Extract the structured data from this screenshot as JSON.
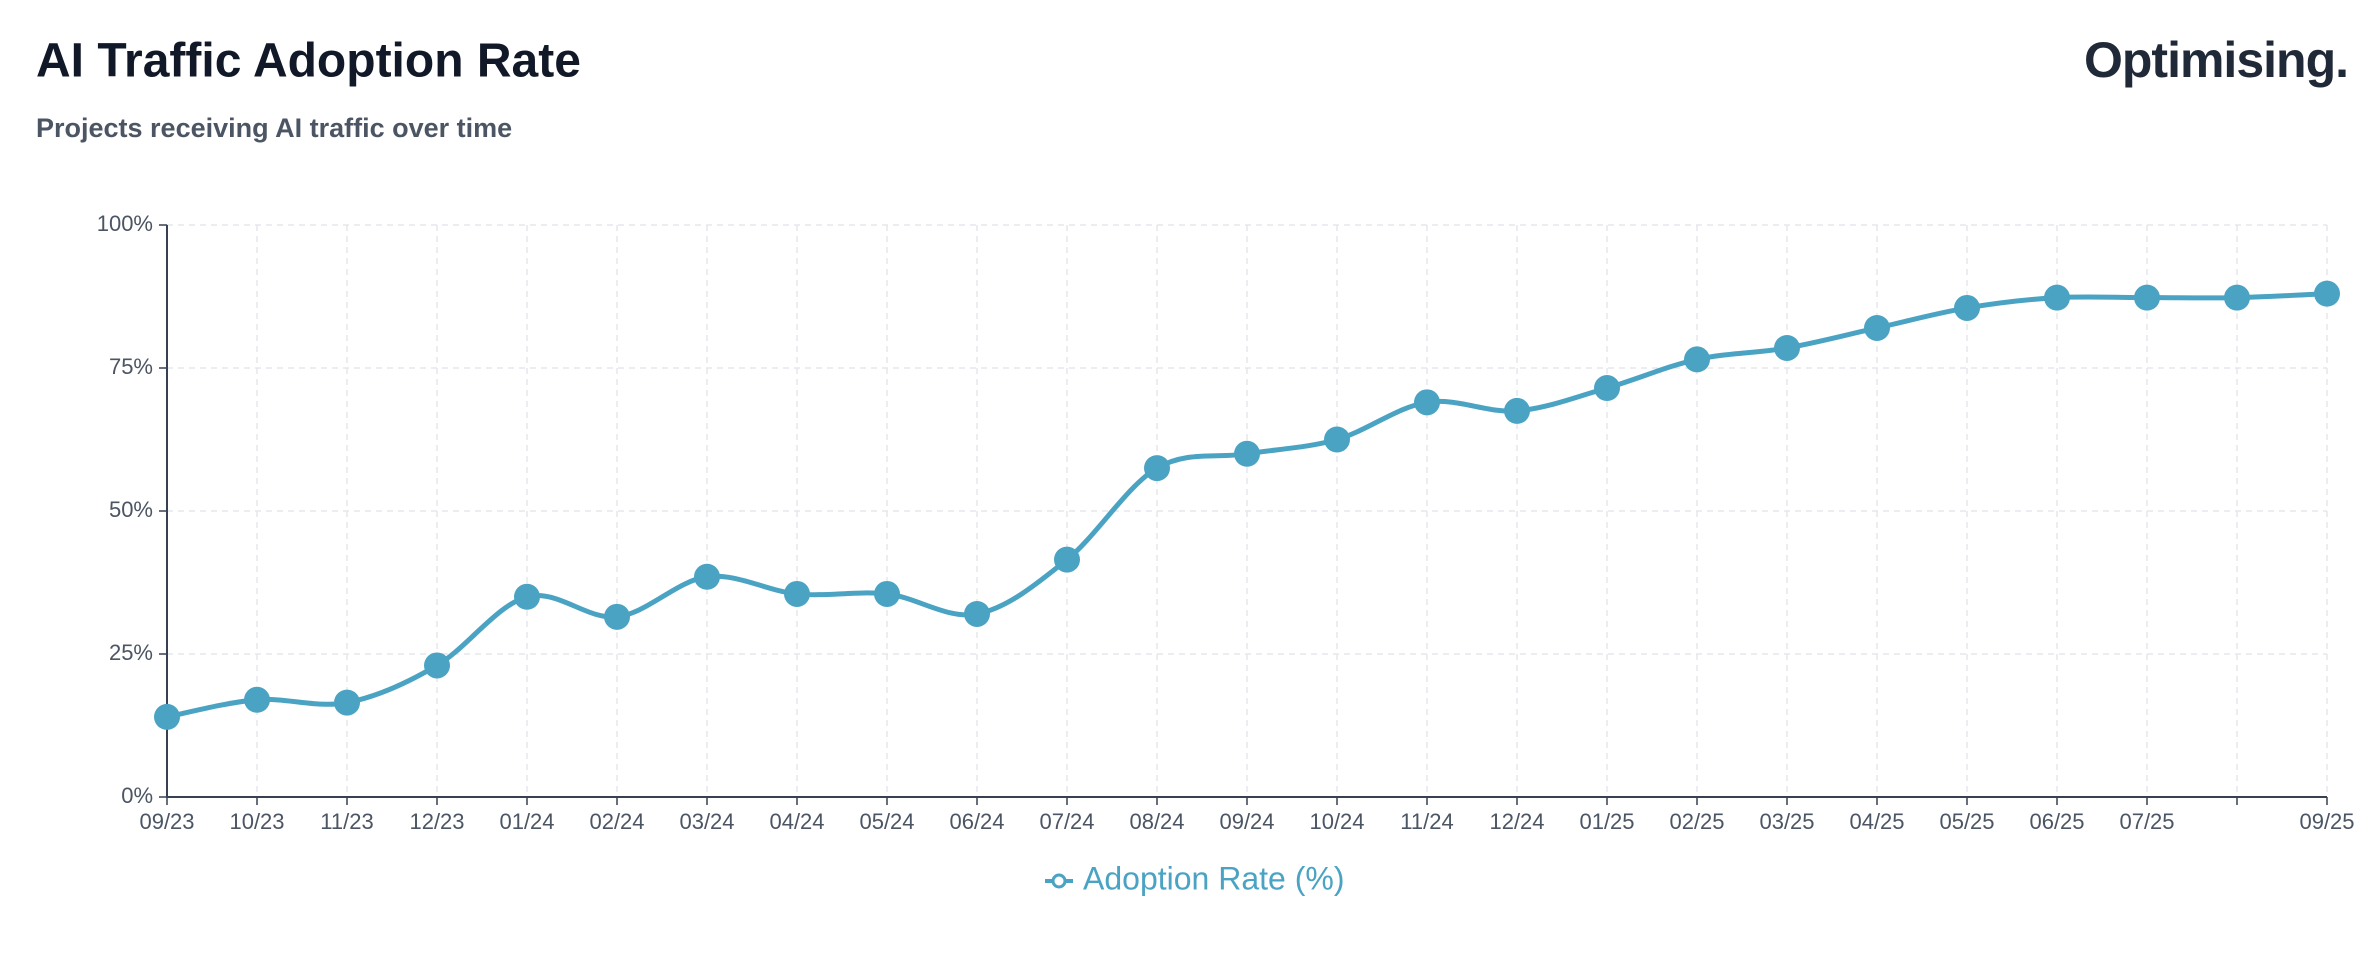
{
  "chart_data": {
    "type": "line",
    "title": "AI Traffic Adoption Rate",
    "subtitle": "Projects receiving AI traffic over time",
    "logo": "Optimising.",
    "categories": [
      "09/23",
      "10/23",
      "11/23",
      "12/23",
      "01/24",
      "02/24",
      "03/24",
      "04/24",
      "05/24",
      "06/24",
      "07/24",
      "08/24",
      "09/24",
      "10/24",
      "11/24",
      "12/24",
      "01/25",
      "02/25",
      "03/25",
      "04/25",
      "05/25",
      "06/25",
      "07/25",
      null,
      "09/25"
    ],
    "series": [
      {
        "name": "Adoption Rate (%)",
        "color": "#4ba3c3",
        "values": [
          14,
          17,
          16.5,
          23,
          35,
          31.5,
          38.5,
          35.5,
          35.5,
          32,
          41.5,
          57.5,
          60,
          62.5,
          69,
          67.5,
          71.5,
          76.5,
          78.5,
          82,
          85.5,
          87.3,
          87.3,
          87.3,
          88
        ]
      }
    ],
    "ylim": [
      0,
      100
    ],
    "yticks": [
      {
        "value": 0,
        "label": "0%"
      },
      {
        "value": 25,
        "label": "25%"
      },
      {
        "value": 50,
        "label": "50%"
      },
      {
        "value": 75,
        "label": "75%"
      },
      {
        "value": 100,
        "label": "100%"
      }
    ],
    "grid": true
  }
}
